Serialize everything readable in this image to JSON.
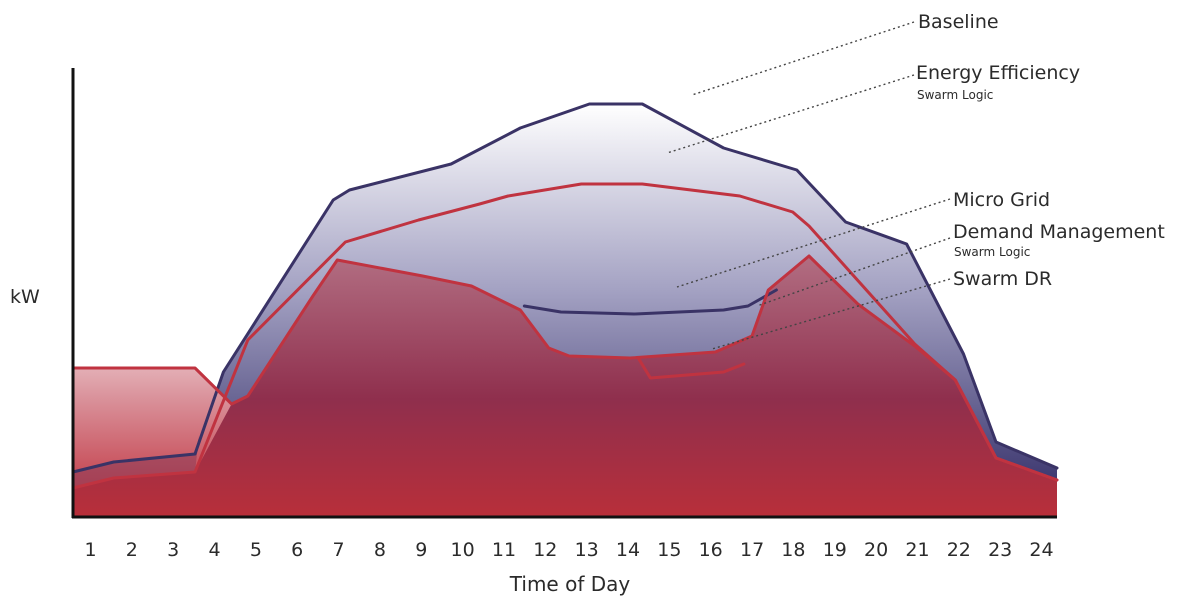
{
  "chart_data": {
    "type": "area",
    "xlabel": "Time of Day",
    "ylabel": "kW",
    "categories": [
      "1",
      "2",
      "3",
      "4",
      "5",
      "6",
      "7",
      "8",
      "9",
      "10",
      "11",
      "12",
      "13",
      "14",
      "15",
      "16",
      "17",
      "18",
      "19",
      "20",
      "21",
      "22",
      "23",
      "24"
    ],
    "xlim": [
      0.5,
      24.7
    ],
    "ylim": [
      0,
      100
    ],
    "grid": false,
    "series": [
      {
        "name": "Baseline",
        "color": "#3a3366",
        "points": [
          [
            0.5,
            11
          ],
          [
            1.5,
            13.5
          ],
          [
            3.5,
            15.5
          ],
          [
            4.2,
            36
          ],
          [
            6.9,
            79
          ],
          [
            7.3,
            81.5
          ],
          [
            9.8,
            88
          ],
          [
            11.5,
            97
          ],
          [
            13.2,
            103
          ],
          [
            14.5,
            103
          ],
          [
            16.5,
            92
          ],
          [
            18.3,
            86.5
          ],
          [
            19.5,
            73.5
          ],
          [
            21,
            68
          ],
          [
            22.4,
            40.5
          ],
          [
            23.2,
            18.5
          ],
          [
            24.7,
            12
          ]
        ]
      },
      {
        "name": "Energy Efficiency",
        "subtitle": "Swarm Logic",
        "color": "#c03340",
        "points": [
          [
            0.5,
            7
          ],
          [
            1.5,
            9.5
          ],
          [
            3.5,
            11
          ],
          [
            4.8,
            44
          ],
          [
            7.2,
            68.5
          ],
          [
            9,
            74
          ],
          [
            10.5,
            78
          ],
          [
            11.2,
            80
          ],
          [
            13,
            83
          ],
          [
            14.5,
            83
          ],
          [
            16.9,
            80
          ],
          [
            18.2,
            76
          ],
          [
            18.6,
            72.5
          ],
          [
            21.2,
            43
          ],
          [
            22.2,
            34
          ],
          [
            23.2,
            14.5
          ],
          [
            24.7,
            9
          ]
        ]
      },
      {
        "name": "Micro Grid",
        "color": "#3a3366",
        "points": [
          [
            11.6,
            52.5
          ],
          [
            12.5,
            51
          ],
          [
            14.3,
            50.5
          ],
          [
            16.5,
            51.5
          ],
          [
            17.1,
            52.5
          ],
          [
            17.8,
            56.5
          ]
        ]
      },
      {
        "name": "Demand Management",
        "subtitle": "Swarm Logic",
        "color": "#c03340",
        "points": [
          [
            0.5,
            37
          ],
          [
            3.5,
            37
          ],
          [
            3.8,
            34
          ],
          [
            4.4,
            28
          ],
          [
            4.8,
            30
          ],
          [
            6.4,
            55
          ],
          [
            7.0,
            64
          ],
          [
            9.1,
            60
          ],
          [
            10.3,
            57.5
          ],
          [
            11.5,
            51.5
          ],
          [
            12.2,
            42
          ],
          [
            12.7,
            40
          ],
          [
            14.2,
            39.5
          ],
          [
            16.3,
            41
          ],
          [
            17.2,
            45
          ],
          [
            17.6,
            56.5
          ],
          [
            18.6,
            65
          ],
          [
            19.8,
            53
          ],
          [
            21.2,
            42.5
          ],
          [
            22.2,
            34
          ],
          [
            23.2,
            14.5
          ],
          [
            24.7,
            9
          ]
        ]
      },
      {
        "name": "Swarm DR",
        "color": "#c03340",
        "points": [
          [
            14.4,
            39.5
          ],
          [
            14.7,
            34.5
          ],
          [
            16.5,
            36
          ],
          [
            17.0,
            38
          ]
        ]
      }
    ],
    "annotations": [
      {
        "label": "Baseline"
      },
      {
        "label": "Energy Efficiency",
        "sub": "Swarm Logic"
      },
      {
        "label": "Micro Grid"
      },
      {
        "label": "Demand Management",
        "sub": "Swarm Logic"
      },
      {
        "label": "Swarm DR"
      }
    ]
  }
}
